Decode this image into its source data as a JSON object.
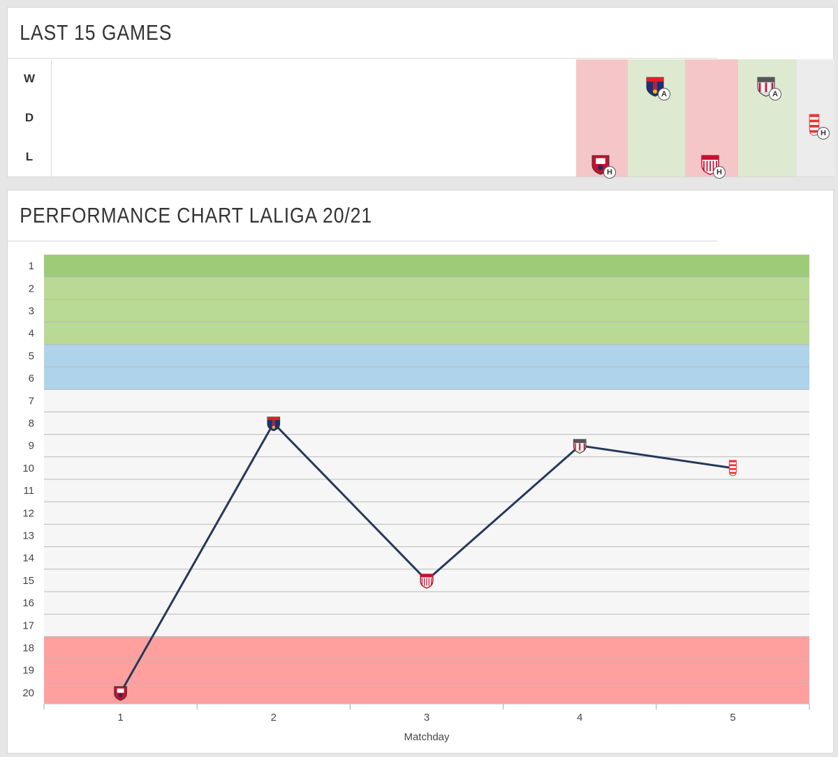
{
  "form_section": {
    "title": "LAST 15 GAMES",
    "row_labels": [
      "W",
      "D",
      "L"
    ],
    "games": [
      {
        "result": "L",
        "venue": "H",
        "opponent_icon": "osasuna-crest-icon"
      },
      {
        "result": "W",
        "venue": "A",
        "opponent_icon": "huesca-crest-icon"
      },
      {
        "result": "L",
        "venue": "H",
        "opponent_icon": "sevilla-crest-icon"
      },
      {
        "result": "W",
        "venue": "A",
        "opponent_icon": "athletic-bilbao-crest-icon"
      },
      {
        "result": "D",
        "venue": "H",
        "opponent_icon": "granada-crest-icon"
      }
    ],
    "colors": {
      "L": "#f4c6c8",
      "W": "#dde9d1",
      "D": "#ececec"
    }
  },
  "performance_section": {
    "title": "PERFORMANCE CHART LALIGA 20/21"
  },
  "chart_data": {
    "type": "line",
    "xlabel": "Matchday",
    "ylabel": "",
    "x": [
      1,
      2,
      3,
      4,
      5
    ],
    "xticks": [
      "1",
      "2",
      "3",
      "4",
      "5"
    ],
    "yticks": [
      "1",
      "2",
      "3",
      "4",
      "5",
      "6",
      "7",
      "8",
      "9",
      "10",
      "11",
      "12",
      "13",
      "14",
      "15",
      "16",
      "17",
      "18",
      "19",
      "20"
    ],
    "ylim": [
      20,
      1
    ],
    "series": [
      {
        "values": [
          20,
          8,
          15,
          9,
          10
        ],
        "color": "#24395a"
      }
    ],
    "markers": [
      "osasuna-crest-icon",
      "huesca-crest-icon",
      "sevilla-crest-icon",
      "athletic-bilbao-crest-icon",
      "granada-crest-icon"
    ],
    "zones": [
      {
        "from": 1,
        "to": 1,
        "color": "#9ecb78"
      },
      {
        "from": 2,
        "to": 4,
        "color": "#b8da94"
      },
      {
        "from": 5,
        "to": 6,
        "color": "#aed3ea"
      },
      {
        "from": 7,
        "to": 17,
        "color": "#f6f6f6"
      },
      {
        "from": 18,
        "to": 20,
        "color": "#ffa09f"
      }
    ],
    "grid": true,
    "legend": "none"
  }
}
